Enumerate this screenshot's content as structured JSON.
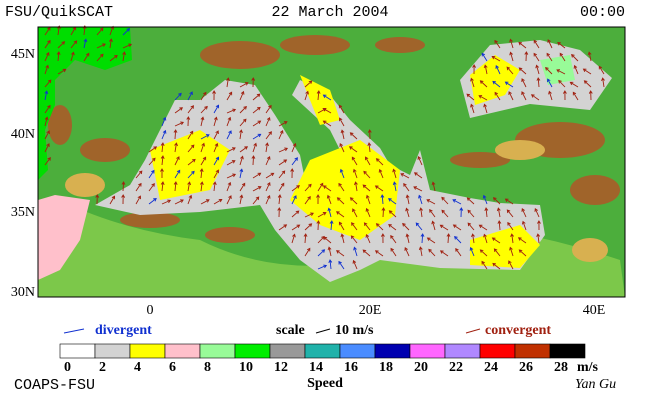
{
  "header": {
    "source": "FSU/QuikSCAT",
    "date": "22 March 2004",
    "time": "00:00"
  },
  "map": {
    "lat_labels": [
      "45N",
      "40N",
      "35N",
      "30N"
    ],
    "lon_labels": [
      "0",
      "20E",
      "40E"
    ]
  },
  "legend": {
    "divergent": "divergent",
    "scale": "scale",
    "scale_value": "10 m/s",
    "convergent": "convergent"
  },
  "colorbar": {
    "ticks": [
      0,
      2,
      4,
      6,
      8,
      10,
      12,
      14,
      16,
      18,
      20,
      22,
      24,
      26,
      28
    ],
    "unit": "m/s",
    "title": "Speed",
    "colors": [
      "#ffffff",
      "#d3d3d3",
      "#ffff00",
      "#ffc0cb",
      "#98fb98",
      "#00ee00",
      "#999999",
      "#20b2aa",
      "#4a8cff",
      "#0000b0",
      "#ff66ff",
      "#b088ff",
      "#ff0000",
      "#c03000",
      "#000000"
    ]
  },
  "footer": {
    "credit": "COAPS-FSU",
    "author": "Yan Gu"
  }
}
